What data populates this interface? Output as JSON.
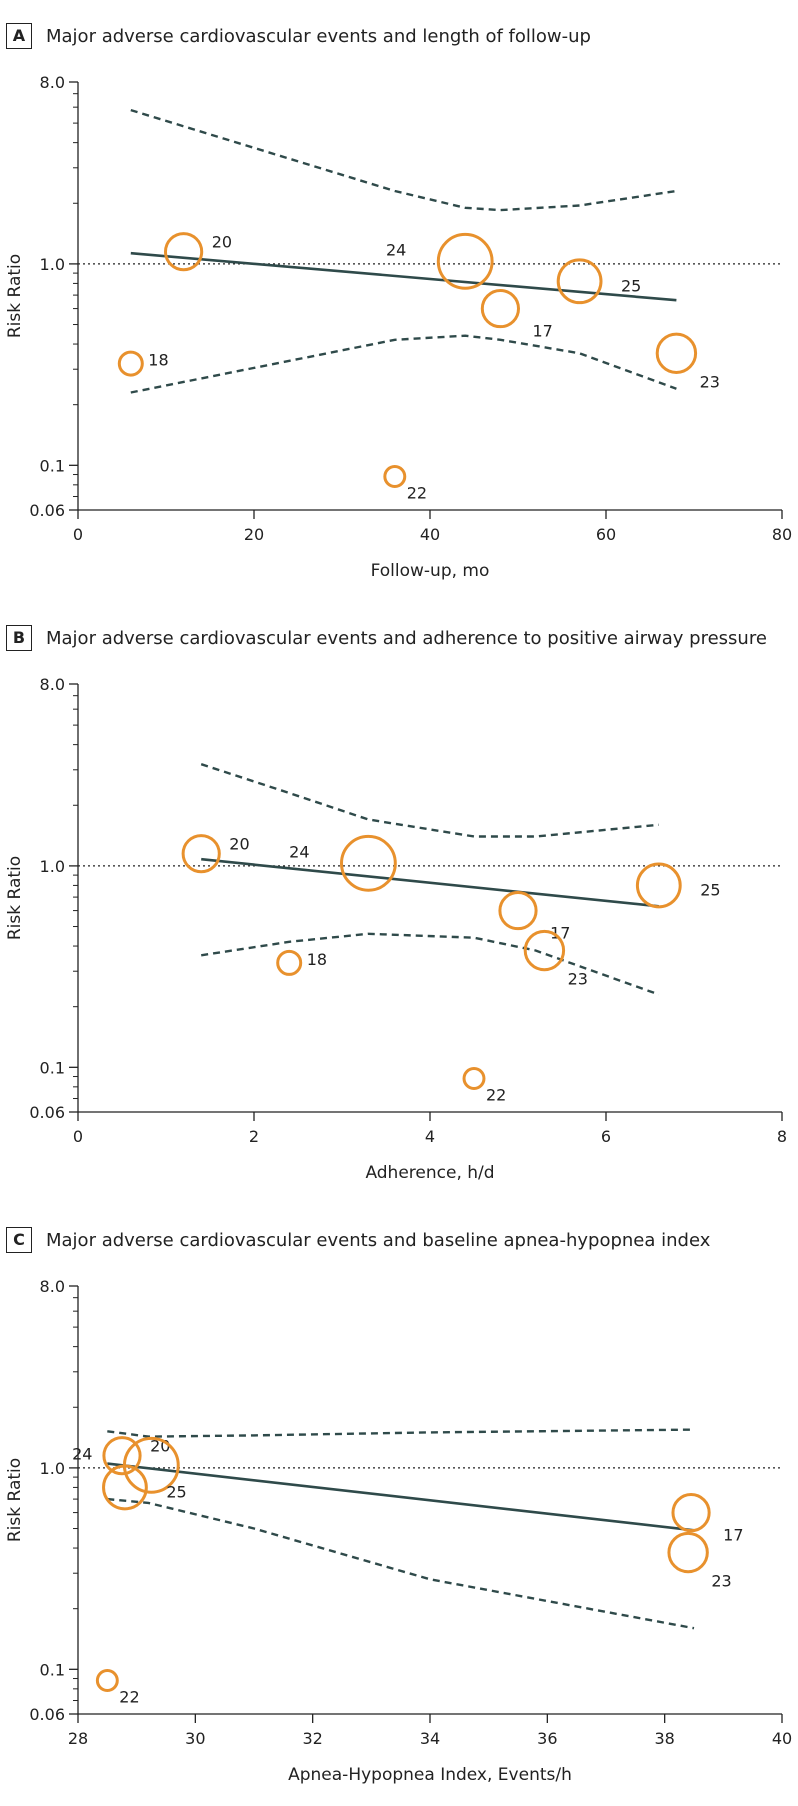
{
  "chart_data": [
    {
      "type": "scatter",
      "panel_label": "A",
      "title": "Major adverse cardiovascular events and length of follow-up",
      "xlabel": "Follow-up, mo",
      "ylabel": "Risk Ratio",
      "xlim": [
        0,
        80
      ],
      "ylim": [
        0.06,
        8.0
      ],
      "yscale": "log",
      "xticks": [
        "0",
        "20",
        "40",
        "60",
        "80"
      ],
      "yticks": [
        "0.06",
        "0.1",
        "1.0",
        "8.0"
      ],
      "reference_line": 1.0,
      "points": [
        {
          "label": "20",
          "x": 12,
          "y": 1.15,
          "size": 0.55
        },
        {
          "label": "18",
          "x": 6,
          "y": 0.32,
          "size": 0.25
        },
        {
          "label": "24",
          "x": 44,
          "y": 1.03,
          "size": 0.95
        },
        {
          "label": "25",
          "x": 57,
          "y": 0.82,
          "size": 0.7
        },
        {
          "label": "17",
          "x": 48,
          "y": 0.6,
          "size": 0.55
        },
        {
          "label": "23",
          "x": 68,
          "y": 0.36,
          "size": 0.6
        },
        {
          "label": "22",
          "x": 36,
          "y": 0.088,
          "size": 0.18
        }
      ],
      "fit_line": {
        "x": [
          6,
          68
        ],
        "y": [
          1.13,
          0.66
        ]
      },
      "ci_upper": {
        "x": [
          6,
          36,
          44,
          48,
          57,
          68
        ],
        "y": [
          5.8,
          2.3,
          1.9,
          1.85,
          1.95,
          2.3
        ]
      },
      "ci_lower": {
        "x": [
          6,
          36,
          44,
          48,
          57,
          68
        ],
        "y": [
          0.23,
          0.42,
          0.44,
          0.42,
          0.36,
          0.24
        ]
      }
    },
    {
      "type": "scatter",
      "panel_label": "B",
      "title": "Major adverse cardiovascular events and adherence to positive airway pressure",
      "xlabel": "Adherence, h/d",
      "ylabel": "Risk Ratio",
      "xlim": [
        0,
        8
      ],
      "ylim": [
        0.06,
        8.0
      ],
      "yscale": "log",
      "xticks": [
        "0",
        "2",
        "4",
        "6",
        "8"
      ],
      "yticks": [
        "0.06",
        "0.1",
        "1.0",
        "8.0"
      ],
      "reference_line": 1.0,
      "points": [
        {
          "label": "20",
          "x": 1.4,
          "y": 1.15,
          "size": 0.55
        },
        {
          "label": "24",
          "x": 3.3,
          "y": 1.03,
          "size": 0.95
        },
        {
          "label": "18",
          "x": 2.4,
          "y": 0.33,
          "size": 0.25
        },
        {
          "label": "17",
          "x": 5.0,
          "y": 0.6,
          "size": 0.55
        },
        {
          "label": "23",
          "x": 5.3,
          "y": 0.38,
          "size": 0.6
        },
        {
          "label": "25",
          "x": 6.6,
          "y": 0.8,
          "size": 0.7
        },
        {
          "label": "22",
          "x": 4.5,
          "y": 0.088,
          "size": 0.18
        }
      ],
      "fit_line": {
        "x": [
          1.4,
          6.6
        ],
        "y": [
          1.08,
          0.63
        ]
      },
      "ci_upper": {
        "x": [
          1.4,
          2.4,
          3.3,
          4.5,
          5.2,
          6.6
        ],
        "y": [
          3.2,
          2.3,
          1.7,
          1.4,
          1.4,
          1.6
        ]
      },
      "ci_lower": {
        "x": [
          1.4,
          2.4,
          3.3,
          4.5,
          5.2,
          6.6
        ],
        "y": [
          0.36,
          0.42,
          0.46,
          0.44,
          0.38,
          0.23
        ]
      }
    },
    {
      "type": "scatter",
      "panel_label": "C",
      "title": "Major adverse cardiovascular events and baseline apnea-hypopnea index",
      "xlabel": "Apnea-Hypopnea Index, Events/h",
      "ylabel": "Risk Ratio",
      "xlim": [
        28,
        40
      ],
      "ylim": [
        0.06,
        8.0
      ],
      "yscale": "log",
      "xticks": [
        "28",
        "30",
        "32",
        "34",
        "36",
        "38",
        "40"
      ],
      "yticks": [
        "0.06",
        "0.1",
        "1.0",
        "8.0"
      ],
      "reference_line": 1.0,
      "points": [
        {
          "label": "20",
          "x": 28.75,
          "y": 1.15,
          "size": 0.55
        },
        {
          "label": "24",
          "x": 29.25,
          "y": 1.03,
          "size": 0.95
        },
        {
          "label": "25",
          "x": 28.8,
          "y": 0.8,
          "size": 0.7
        },
        {
          "label": "17",
          "x": 38.45,
          "y": 0.6,
          "size": 0.55
        },
        {
          "label": "23",
          "x": 38.4,
          "y": 0.38,
          "size": 0.6
        },
        {
          "label": "22",
          "x": 28.5,
          "y": 0.088,
          "size": 0.18
        }
      ],
      "fit_line": {
        "x": [
          28.5,
          38.5
        ],
        "y": [
          1.05,
          0.49
        ]
      },
      "ci_upper": {
        "x": [
          28.5,
          29.2,
          31,
          34,
          38.5
        ],
        "y": [
          1.52,
          1.43,
          1.45,
          1.5,
          1.55
        ]
      },
      "ci_lower": {
        "x": [
          28.5,
          29.2,
          31,
          34,
          38.5
        ],
        "y": [
          0.7,
          0.67,
          0.5,
          0.28,
          0.16
        ]
      }
    }
  ],
  "colors": {
    "point": "#e8912d",
    "fit": "#2f4a4a",
    "axis": "#222222",
    "reference": "#222222"
  }
}
